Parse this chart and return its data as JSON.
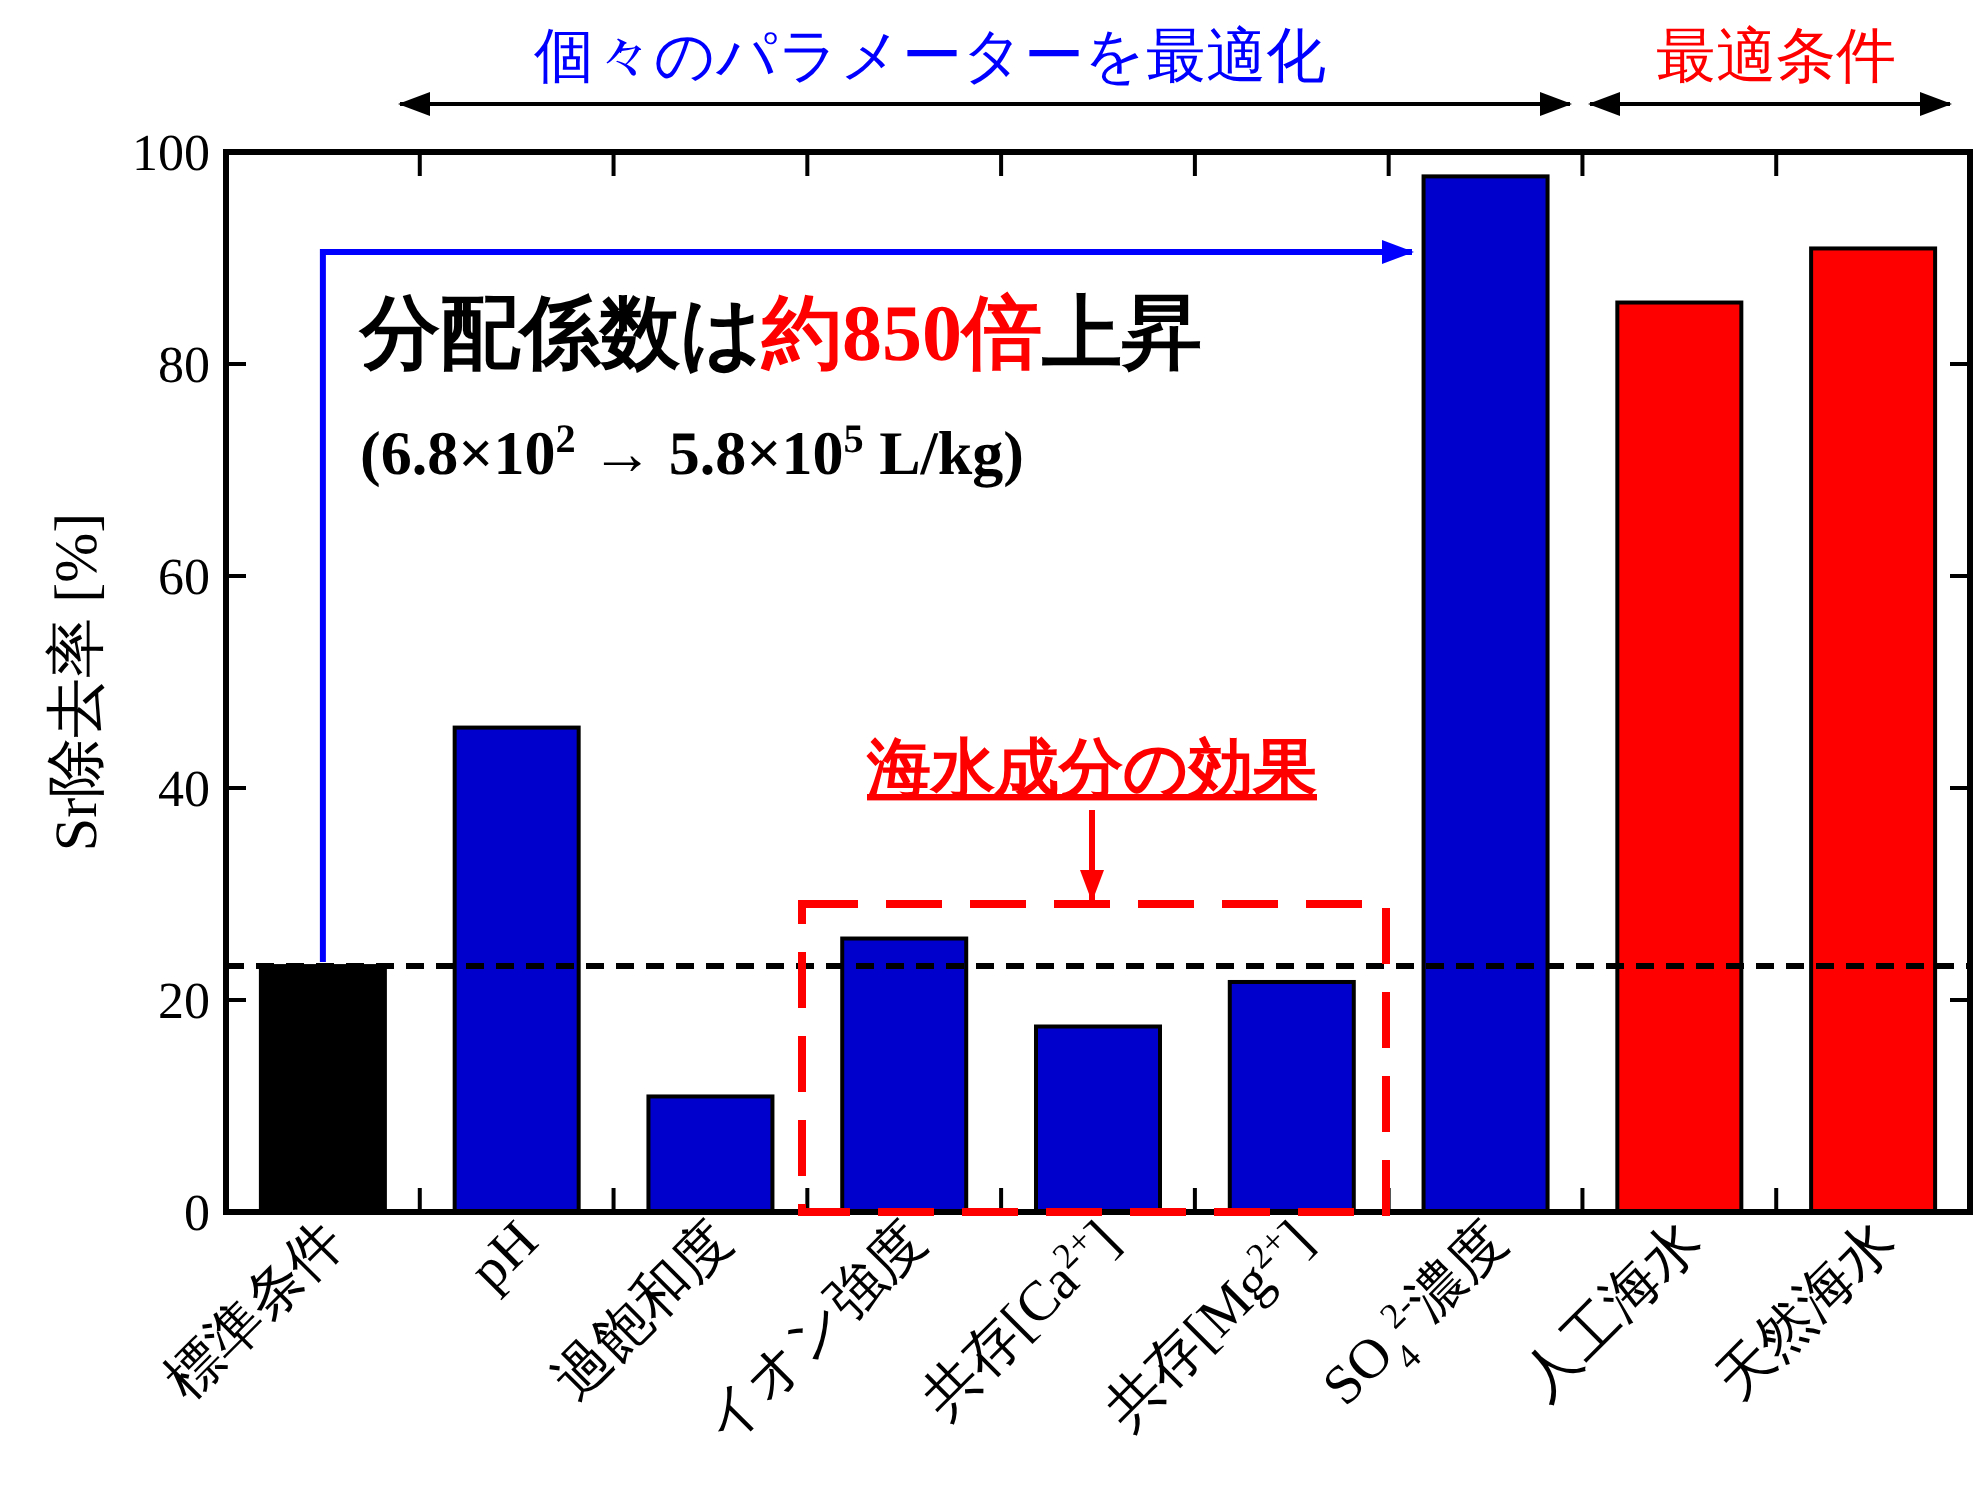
{
  "chart_data": {
    "type": "bar",
    "ylabel": "Sr除去率 [%]",
    "categories": [
      "標準条件",
      "pH",
      "過飽和度",
      "イオン強度",
      "共存[Ca$^{2+}$]",
      "共存[Mg$^{2+}$]",
      "SO$_{4}$$^{2-}$濃度",
      "人工海水",
      "天然海水"
    ],
    "values": [
      23.2,
      45.7,
      10.9,
      25.8,
      17.5,
      21.7,
      97.7,
      85.8,
      90.9
    ],
    "colors": [
      "#000000",
      "#0000cc",
      "#0000cc",
      "#0000cc",
      "#0000cc",
      "#0000cc",
      "#0000cc",
      "#ff0000",
      "#ff0000"
    ],
    "ylim": [
      0,
      100
    ],
    "yticks": [
      0,
      20,
      40,
      60,
      80,
      100
    ],
    "ref_lines": [
      {
        "axis": "y",
        "value": 23.2,
        "color": "#000000",
        "line_style": "dashed"
      }
    ],
    "annotations": [
      "個々のパラメーターを最適化",
      "最適条件",
      "分配係数は",
      "約850倍",
      "上昇",
      "(6.8×10$^{2}$ → 5.8×10$^{5}$ L/kg)",
      "海水成分の効果"
    ]
  }
}
